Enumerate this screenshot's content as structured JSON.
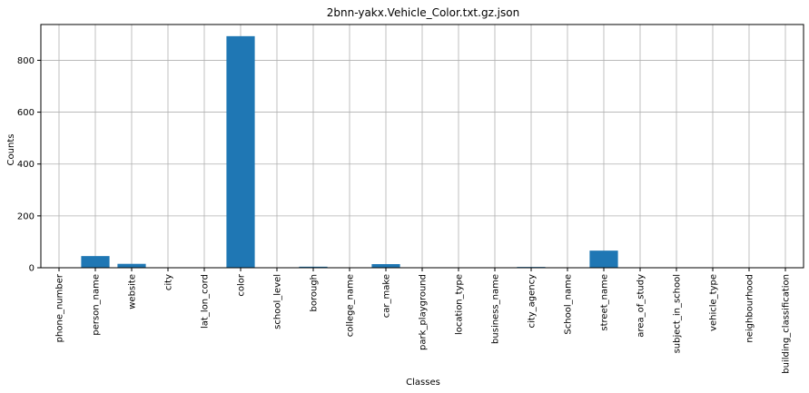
{
  "chart_data": {
    "type": "bar",
    "title": "2bnn-yakx.Vehicle_Color.txt.gz.json",
    "xlabel": "Classes",
    "ylabel": "Counts",
    "categories": [
      "phone_number",
      "person_name",
      "website",
      "city",
      "lat_lon_cord",
      "color",
      "school_level",
      "borough",
      "college_name",
      "car_make",
      "park_playground",
      "location_type",
      "business_name",
      "city_agency",
      "School_name",
      "street_name",
      "area_of_study",
      "subject_in_school",
      "vehicle_type",
      "neighbourhood",
      "building_classification"
    ],
    "values": [
      0,
      45,
      15,
      0,
      0,
      893,
      0,
      4,
      0,
      14,
      0,
      0,
      0,
      3,
      0,
      66,
      0,
      0,
      0,
      0,
      0
    ],
    "yticks": [
      0,
      200,
      400,
      600,
      800
    ],
    "ylim": [
      0,
      938
    ],
    "grid": true,
    "bar_color": "#1f77b4"
  }
}
